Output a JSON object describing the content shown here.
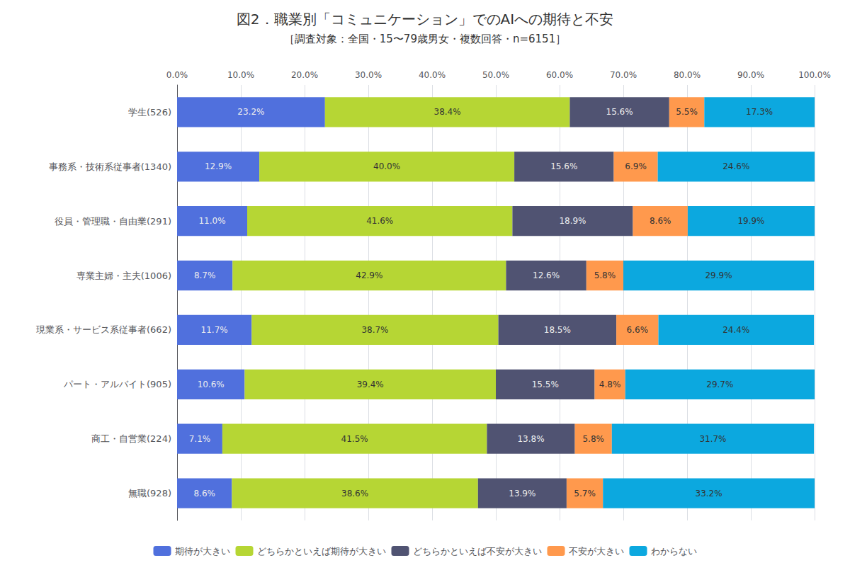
{
  "chart_data": {
    "type": "bar",
    "orientation": "horizontal",
    "stacked": true,
    "data_labels": true,
    "grid": true,
    "legend": "bottom",
    "title": "図2．職業別「コミュニケーション」でのAIへの期待と不安",
    "subtitle": "［調査対象：全国・15〜79歳男女・複数回答・n=6151］",
    "categories": [
      "学生(526)",
      "事務系・技術系従事者(1340)",
      "役員・管理職・自由業(291)",
      "専業主婦・主夫(1006)",
      "現業系・サービス系従事者(662)",
      "パート・アルバイト(905)",
      "商工・自営業(224)",
      "無職(928)"
    ],
    "series": [
      {
        "name": "期待が大きい",
        "values": [
          23.2,
          12.9,
          11.0,
          8.7,
          11.7,
          10.6,
          7.1,
          8.6
        ],
        "value_labels": [
          "23.2%",
          "12.9%",
          "11.0%",
          "8.7%",
          "11.7%",
          "10.6%",
          "7.1%",
          "8.6%"
        ]
      },
      {
        "name": "どちらかといえば期待が大きい",
        "values": [
          38.4,
          40.0,
          41.6,
          42.9,
          38.7,
          39.4,
          41.5,
          38.6
        ],
        "value_labels": [
          "38.4%",
          "40.0%",
          "41.6%",
          "42.9%",
          "38.7%",
          "39.4%",
          "41.5%",
          "38.6%"
        ]
      },
      {
        "name": "どちらかといえば不安が大きい",
        "values": [
          15.6,
          15.6,
          18.9,
          12.6,
          18.5,
          15.5,
          13.8,
          13.9
        ],
        "value_labels": [
          "15.6%",
          "15.6%",
          "18.9%",
          "12.6%",
          "18.5%",
          "15.5%",
          "13.8%",
          "13.9%"
        ]
      },
      {
        "name": "不安が大きい",
        "values": [
          5.5,
          6.9,
          8.6,
          5.8,
          6.6,
          4.8,
          5.8,
          5.7
        ],
        "value_labels": [
          "5.5%",
          "6.9%",
          "8.6%",
          "5.8%",
          "6.6%",
          "4.8%",
          "5.8%",
          "5.7%"
        ]
      },
      {
        "name": "わからない",
        "values": [
          17.3,
          24.6,
          19.9,
          29.9,
          24.4,
          29.7,
          31.7,
          33.2
        ],
        "value_labels": [
          "17.3%",
          "24.6%",
          "19.9%",
          "29.9%",
          "24.4%",
          "29.7%",
          "31.7%",
          "33.2%"
        ]
      }
    ],
    "xlim": [
      0,
      100
    ],
    "xticks": [
      {
        "value": 0,
        "label": "0.0%"
      },
      {
        "value": 10,
        "label": "10.0%"
      },
      {
        "value": 20,
        "label": "20.0%"
      },
      {
        "value": 30,
        "label": "30.0%"
      },
      {
        "value": 40,
        "label": "40.0%"
      },
      {
        "value": 50,
        "label": "50.0%"
      },
      {
        "value": 60,
        "label": "60.0%"
      },
      {
        "value": 70,
        "label": "70.0%"
      },
      {
        "value": 80,
        "label": "80.0%"
      },
      {
        "value": 90,
        "label": "90.0%"
      },
      {
        "value": 100,
        "label": "100.0%"
      }
    ]
  }
}
